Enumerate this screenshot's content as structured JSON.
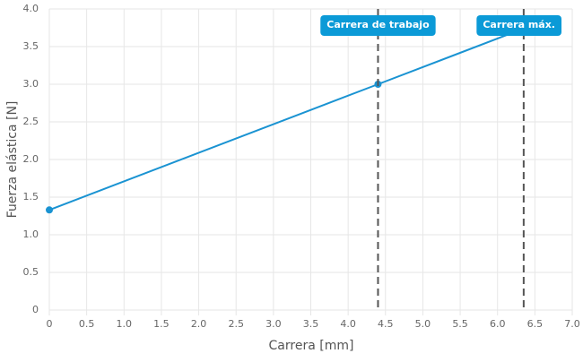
{
  "chart_data": {
    "type": "line",
    "x_label": "Carrera [mm]",
    "y_label": "Fuerza elástica [N]",
    "x": [
      0,
      4.4,
      6.35
    ],
    "series": [
      {
        "color": "#1a93d2",
        "values": [
          1.33,
          3.0,
          3.74
        ],
        "markers": [
          true,
          true,
          false
        ]
      }
    ],
    "xlim": [
      0,
      7
    ],
    "ylim": [
      0,
      4
    ],
    "xticks": [
      0,
      0.5,
      {
        "value": 1,
        "label": "1.0"
      },
      1.5,
      {
        "value": 2,
        "label": "2.0"
      },
      2.5,
      {
        "value": 3,
        "label": "3.0"
      },
      3.5,
      {
        "value": 4,
        "label": "4.0"
      },
      4.5,
      {
        "value": 5,
        "label": "5.0"
      },
      5.5,
      {
        "value": 6,
        "label": "6.0"
      },
      6.5,
      {
        "value": 7,
        "label": "7.0"
      }
    ],
    "yticks": [
      0,
      0.5,
      {
        "value": 1,
        "label": "1.0"
      },
      1.5,
      {
        "value": 2,
        "label": "2.0"
      },
      2.5,
      {
        "value": 3,
        "label": "3.0"
      },
      3.5,
      {
        "value": 4,
        "label": "4.0"
      }
    ],
    "grid": true,
    "annotations": [
      {
        "x": 4.4,
        "label": "Carrera de trabajo"
      },
      {
        "x": 6.35,
        "label": "Carrera máx."
      }
    ]
  }
}
